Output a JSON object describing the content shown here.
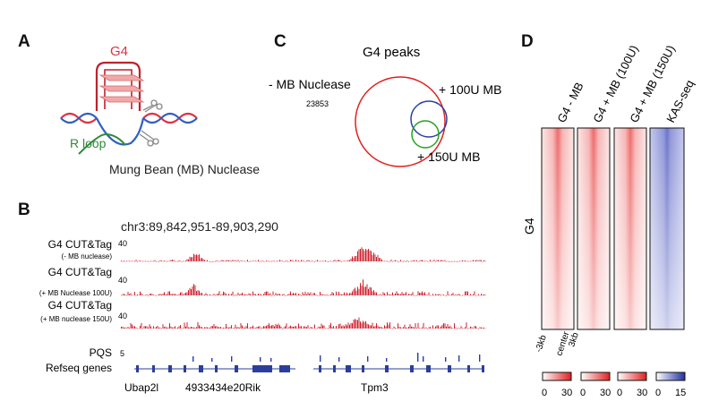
{
  "panel_a": {
    "letter": "A",
    "g4_label": "G4",
    "rloop_label": "R loop",
    "nuclease_label": "Mung Bean (MB) Nuclease",
    "colors": {
      "g4": "#e03040",
      "dna_red": "#e03040",
      "dna_blue": "#3060c0",
      "rloop": "#2e8b3a",
      "quartet": "#f2a8a8"
    }
  },
  "panel_b": {
    "letter": "B",
    "locus": "chr3:89,842,951-89,903,290",
    "tracks": [
      {
        "title": "G4 CUT&Tag",
        "subtitle": "(- MB nuclease)",
        "scale": "40"
      },
      {
        "title": "G4 CUT&Tag",
        "subtitle": "(+ MB Nuclease 100U)",
        "scale": "40"
      },
      {
        "title": "G4 CUT&Tag",
        "subtitle": "(+ MB nuclease 150U)",
        "scale": "40"
      }
    ],
    "pqs_label": "PQS",
    "pqs_scale": "5",
    "refseq_label": "Refseq genes",
    "genes": [
      "Ubap2l",
      "4933434e20Rik",
      "Tpm3"
    ],
    "colors": {
      "track": "#d0202e",
      "gene": "#2c3e9c"
    }
  },
  "panel_c": {
    "letter": "C",
    "title": "G4 peaks",
    "sets": [
      {
        "label": "- MB Nuclease",
        "count": "23853",
        "color": "#e02020"
      },
      {
        "label": "+ 100U MB",
        "count": "",
        "color": "#2a40a8"
      },
      {
        "label": "+ 150U MB",
        "count": "",
        "color": "#28a028"
      }
    ]
  },
  "panel_d": {
    "letter": "D",
    "row_label": "G4",
    "columns": [
      "G4 - MB",
      "G4 + MB (100U)",
      "G4 + MB (150U)",
      "KAS-seq"
    ],
    "x_ticks": [
      "-3kb",
      "center",
      "3kb"
    ],
    "colorbars": [
      {
        "min": "0",
        "max": "30",
        "color": "#e02020"
      },
      {
        "min": "0",
        "max": "30",
        "color": "#e02020"
      },
      {
        "min": "0",
        "max": "30",
        "color": "#e02020"
      },
      {
        "min": "0",
        "max": "15",
        "color": "#2030a0"
      }
    ]
  }
}
